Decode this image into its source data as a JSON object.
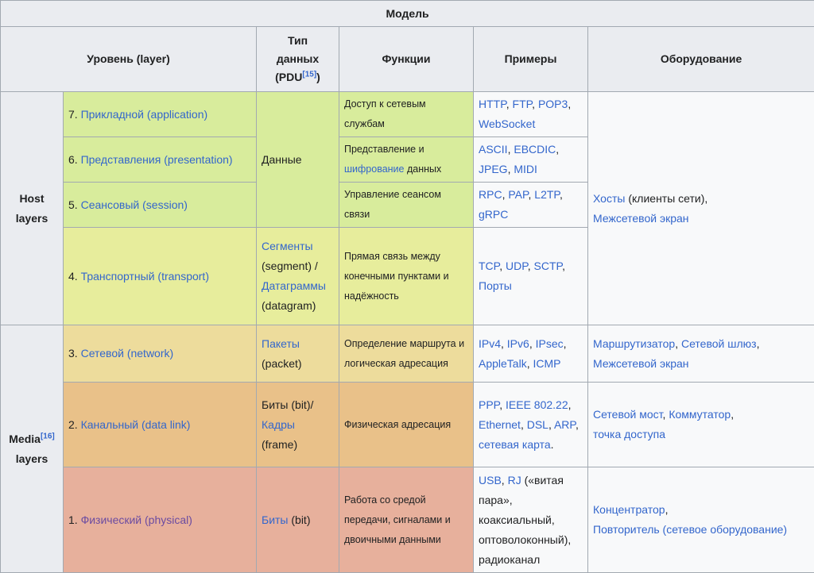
{
  "table": {
    "caption": "Модель",
    "headers": {
      "layer": "Уровень (layer)",
      "pdu_line1": "Тип",
      "pdu_line2": "данных",
      "pdu_line3": "(PDU",
      "pdu_ref": "[15]",
      "pdu_close": ")",
      "functions": "Функции",
      "examples": "Примеры",
      "equipment": "Оборудование"
    },
    "groups": {
      "host_line1": "Host",
      "host_line2": "layers",
      "media_line1": "Media",
      "media_ref": "[16]",
      "media_line2": "layers"
    },
    "rows": {
      "l7": {
        "num": "7. ",
        "name": "Прикладной (application)",
        "func": "Доступ к сетевым службам",
        "examples": [
          "HTTP",
          ", ",
          "FTP",
          ", ",
          "POP3",
          ", ",
          "WebSocket"
        ]
      },
      "l6": {
        "num": "6. ",
        "name": "Представления (presentation)",
        "func_pre": "Представление и ",
        "func_link": "шифрование",
        "func_post": " данных",
        "examples": [
          "ASCII",
          ", ",
          "EBCDIC",
          ", ",
          "JPEG",
          ", ",
          "MIDI"
        ]
      },
      "l5": {
        "num": "5. ",
        "name": "Сеансовый (session)",
        "func": "Управление сеансом связи",
        "examples": [
          "RPC",
          ", ",
          "PAP",
          ", ",
          "L2TP",
          ", ",
          "gRPC"
        ]
      },
      "l4": {
        "num": "4. ",
        "name": "Транспортный (transport)",
        "pdu_link1": "Сегменты",
        "pdu_text1": "(segment) / ",
        "pdu_link2": "Датаграммы",
        "pdu_text2": "(datagram)",
        "func": "Прямая связь между конечными пунктами и надёжность",
        "examples": [
          "TCP",
          ", ",
          "UDP",
          ", ",
          "SCTP",
          ", ",
          "Порты"
        ]
      },
      "l3": {
        "num": "3. ",
        "name": "Сетевой (network)",
        "pdu_link": "Пакеты",
        "pdu_text": "(packet)",
        "func": "Определение маршрута и логическая адресация",
        "examples": [
          "IPv4",
          ", ",
          "IPv6",
          ", ",
          "IPsec",
          ", ",
          "AppleTalk",
          ", ",
          "ICMP"
        ],
        "equip_link1": "Маршрутизатор",
        "equip_sep": ", ",
        "equip_link2": "Сетевой шлюз",
        "equip_sep2": ",",
        "equip_link3": "Межсетевой экран"
      },
      "l2": {
        "num": "2. ",
        "name": "Канальный (data link)",
        "pdu_text1": "Биты (bit)/",
        "pdu_link": "Кадры",
        "pdu_text2": "(frame)",
        "func": "Физическая адресация",
        "examples": [
          "PPP",
          ", ",
          "IEEE 802.22",
          ", ",
          "Ethernet",
          ", ",
          "DSL",
          ", ",
          "ARP",
          ",",
          "сетевая карта",
          "."
        ],
        "equip_link1": "Сетевой мост",
        "equip_sep": ", ",
        "equip_link2": "Коммутатор",
        "equip_sep2": ",",
        "equip_link3": "точка доступа"
      },
      "l1": {
        "num": "1. ",
        "name": "Физический (physical)",
        "pdu_link": "Биты",
        "pdu_text": " (bit)",
        "func": "Работа со средой передачи, сигналами и двоичными данными",
        "ex_link1": "USB",
        "ex_sep1": ", ",
        "ex_link2": "RJ",
        "ex_text": " («витая пара», коаксиальный, оптоволоконный), радиоканал",
        "equip_link1": "Концентратор",
        "equip_sep": ",",
        "equip_link2": "Повторитель (сетевое оборудование)"
      }
    },
    "shared": {
      "data_pdu": "Данные",
      "host_equip_link1": "Хосты",
      "host_equip_text": " (клиенты сети),",
      "host_equip_link2": "Межсетевой экран"
    }
  }
}
